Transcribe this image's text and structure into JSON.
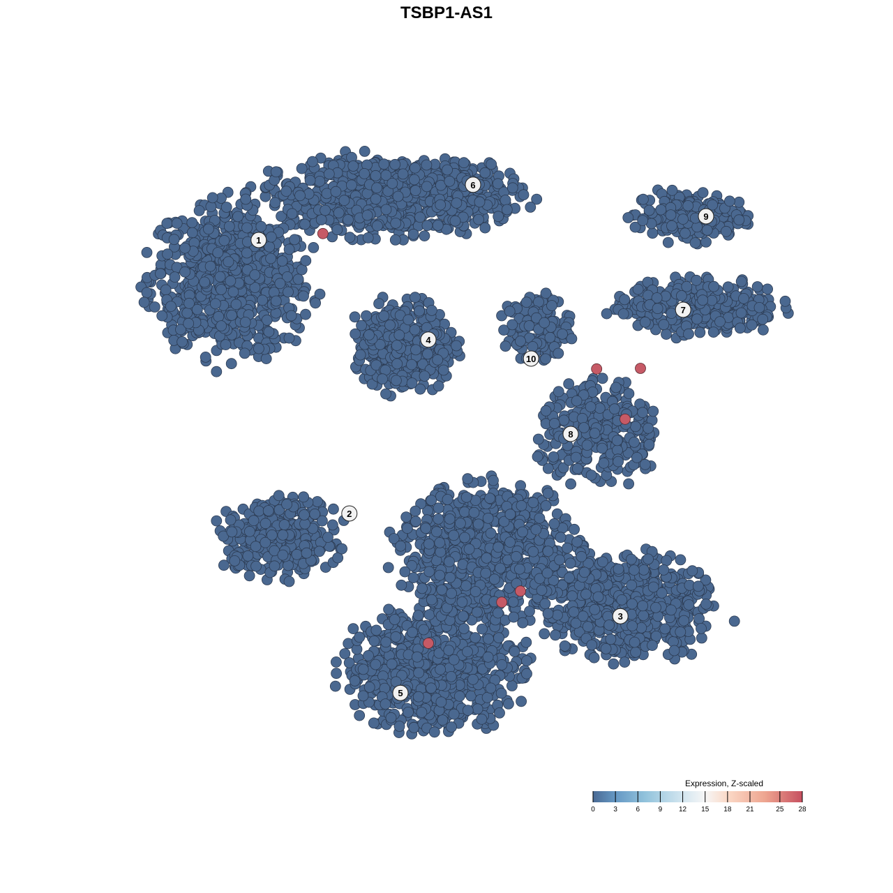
{
  "chart_data": {
    "type": "scatter",
    "title": "TSBP1-AS1",
    "xlabel": "",
    "ylabel": "",
    "axes_visible": false,
    "grid": false,
    "xlim": [
      -12,
      12
    ],
    "ylim": [
      -12,
      12
    ],
    "base_color": "#4a6890",
    "highlight_color": "#c65a66",
    "clusters": [
      {
        "label": "1",
        "center": [
          -7.75,
          6.0
        ],
        "spread": [
          2.6,
          2.5
        ],
        "n": 750,
        "label_pos": [
          -6.73,
          7.4
        ]
      },
      {
        "label": "6",
        "center": [
          -2.0,
          9.0
        ],
        "spread": [
          4.2,
          1.3
        ],
        "n": 750,
        "label_pos": [
          0.95,
          9.38
        ]
      },
      {
        "label": "4",
        "center": [
          -1.5,
          3.6
        ],
        "spread": [
          1.6,
          1.5
        ],
        "n": 450,
        "label_pos": [
          -0.65,
          3.83
        ]
      },
      {
        "label": "10",
        "center": [
          3.25,
          4.25
        ],
        "spread": [
          1.1,
          1.1
        ],
        "n": 130,
        "label_pos": [
          3.03,
          3.15
        ]
      },
      {
        "label": "9",
        "center": [
          8.75,
          8.25
        ],
        "spread": [
          1.8,
          0.8
        ],
        "n": 200,
        "label_pos": [
          9.3,
          8.25
        ]
      },
      {
        "label": "7",
        "center": [
          9.0,
          5.0
        ],
        "spread": [
          2.7,
          0.9
        ],
        "n": 320,
        "label_pos": [
          8.48,
          4.9
        ]
      },
      {
        "label": "8",
        "center": [
          5.5,
          0.5
        ],
        "spread": [
          2.0,
          1.7
        ],
        "n": 300,
        "label_pos": [
          4.45,
          0.45
        ]
      },
      {
        "label": "2",
        "center": [
          -6.0,
          -3.25
        ],
        "spread": [
          2.0,
          1.3
        ],
        "n": 320,
        "label_pos": [
          -3.48,
          -2.4
        ]
      },
      {
        "label": "3",
        "center": [
          6.5,
          -5.75
        ],
        "spread": [
          2.7,
          1.7
        ],
        "n": 620,
        "label_pos": [
          6.23,
          -6.08
        ]
      },
      {
        "label": "5",
        "center": [
          -0.5,
          -8.0
        ],
        "spread": [
          2.9,
          2.0
        ],
        "n": 700,
        "label_pos": [
          -1.65,
          -8.83
        ]
      },
      {
        "label": "",
        "center": [
          1.5,
          -3.8
        ],
        "spread": [
          2.9,
          2.2
        ],
        "n": 800
      }
    ],
    "highlighted_points": [
      [
        -4.43,
        7.63
      ],
      [
        5.38,
        2.78
      ],
      [
        6.95,
        2.8
      ],
      [
        6.4,
        0.98
      ],
      [
        1.98,
        -5.58
      ],
      [
        2.65,
        -5.18
      ],
      [
        -0.65,
        -7.05
      ]
    ],
    "legend": {
      "title": "Expression, Z-scaled",
      "placement": "bottom-right",
      "range": [
        0,
        28
      ],
      "ticks": [
        "0",
        "3",
        "6",
        "9",
        "12",
        "15",
        "18",
        "21",
        "25",
        "28"
      ],
      "colors": [
        {
          "value": 0,
          "color": "#4a6a94"
        },
        {
          "value": 3,
          "color": "#6598c4"
        },
        {
          "value": 7,
          "color": "#92c3dc"
        },
        {
          "value": 12,
          "color": "#d3e6f0"
        },
        {
          "value": 15,
          "color": "#f6f6f6"
        },
        {
          "value": 18,
          "color": "#fbd9c7"
        },
        {
          "value": 23,
          "color": "#eea590"
        },
        {
          "value": 28,
          "color": "#c64f5f"
        }
      ]
    }
  }
}
